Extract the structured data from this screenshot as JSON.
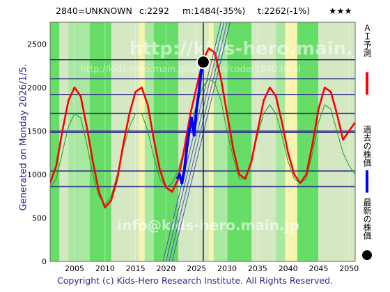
{
  "header": {
    "code": "2840=UNKNOWN",
    "current": "c:2292",
    "mid": "m:1484(-35%)",
    "target": "t:2262(-1%)",
    "stars": "★★★"
  },
  "side_text": "Generated on Monday 2026/1/5.",
  "footer": "Copyright (c) Kids-Hero Research Institute. All Rights Reserved.",
  "watermarks": {
    "top": "http://kids-hero.main.jp/",
    "mid": "http://kids-hero.main.jp/analysis/code/2840.html",
    "bottom": "info@kids-hero.main.jp"
  },
  "legend": [
    {
      "label": "ＡＩ予測",
      "color": "#ff0000",
      "marker": "line"
    },
    {
      "label": "過去の株価",
      "color": "#0000ff",
      "marker": "line"
    },
    {
      "label": "最新の株価",
      "color": "#000000",
      "marker": "dot"
    }
  ],
  "colors": {
    "plot_bg": "#d3e8c3",
    "band_green": "#66dd66",
    "band_light": "#a8e8a0",
    "band_yellow": "#f8f4b0",
    "ai_line": "#ff0000",
    "past_line": "#0000ff",
    "thin_green": "#229922",
    "hline": "#333388"
  },
  "chart_data": {
    "type": "line",
    "xlim": [
      2001,
      2051
    ],
    "ylim": [
      0,
      2750
    ],
    "x_ticks": [
      2005,
      2010,
      2015,
      2020,
      2025,
      2030,
      2035,
      2040,
      2045,
      2050
    ],
    "y_ticks": [
      0,
      500,
      1000,
      1500,
      2000,
      2500
    ],
    "horizontal_levels": [
      860,
      1040,
      1485,
      1500,
      1700,
      1920,
      2100,
      2320
    ],
    "current_marker": {
      "x": 2026.1,
      "y": 2292
    },
    "ai_forecast": [
      [
        2001,
        900
      ],
      [
        2002,
        1100
      ],
      [
        2003,
        1500
      ],
      [
        2004,
        1850
      ],
      [
        2005,
        2000
      ],
      [
        2006,
        1900
      ],
      [
        2007,
        1550
      ],
      [
        2008,
        1150
      ],
      [
        2009,
        800
      ],
      [
        2010,
        620
      ],
      [
        2011,
        700
      ],
      [
        2012,
        950
      ],
      [
        2013,
        1350
      ],
      [
        2014,
        1700
      ],
      [
        2015,
        1950
      ],
      [
        2016,
        2000
      ],
      [
        2017,
        1800
      ],
      [
        2018,
        1400
      ],
      [
        2019,
        1050
      ],
      [
        2020,
        850
      ],
      [
        2021,
        800
      ],
      [
        2022,
        950
      ],
      [
        2023,
        1300
      ],
      [
        2024,
        1700
      ],
      [
        2025,
        2000
      ],
      [
        2026,
        2300
      ],
      [
        2027,
        2450
      ],
      [
        2028,
        2400
      ],
      [
        2029,
        2100
      ],
      [
        2030,
        1700
      ],
      [
        2031,
        1300
      ],
      [
        2032,
        1000
      ],
      [
        2033,
        950
      ],
      [
        2034,
        1150
      ],
      [
        2035,
        1500
      ],
      [
        2036,
        1850
      ],
      [
        2037,
        2000
      ],
      [
        2038,
        1900
      ],
      [
        2039,
        1600
      ],
      [
        2040,
        1250
      ],
      [
        2041,
        1000
      ],
      [
        2042,
        900
      ],
      [
        2043,
        1000
      ],
      [
        2044,
        1350
      ],
      [
        2045,
        1750
      ],
      [
        2046,
        2000
      ],
      [
        2047,
        1950
      ],
      [
        2048,
        1700
      ],
      [
        2049,
        1400
      ],
      [
        2050,
        1500
      ],
      [
        2051,
        1600
      ]
    ],
    "past_prices": [
      [
        2021.8,
        950
      ],
      [
        2022.2,
        1000
      ],
      [
        2022.6,
        900
      ],
      [
        2023.0,
        1050
      ],
      [
        2023.4,
        1300
      ],
      [
        2023.8,
        1500
      ],
      [
        2024.2,
        1650
      ],
      [
        2024.6,
        1450
      ],
      [
        2025.0,
        1750
      ],
      [
        2025.4,
        1950
      ],
      [
        2025.8,
        2200
      ],
      [
        2026.1,
        2292
      ]
    ],
    "thin_green": [
      [
        2001,
        850
      ],
      [
        2002,
        950
      ],
      [
        2003,
        1250
      ],
      [
        2004,
        1550
      ],
      [
        2005,
        1700
      ],
      [
        2006,
        1650
      ],
      [
        2007,
        1350
      ],
      [
        2008,
        1000
      ],
      [
        2009,
        750
      ],
      [
        2010,
        650
      ],
      [
        2011,
        750
      ],
      [
        2012,
        1000
      ],
      [
        2013,
        1300
      ],
      [
        2014,
        1550
      ],
      [
        2015,
        1700
      ],
      [
        2016,
        1700
      ],
      [
        2017,
        1500
      ],
      [
        2018,
        1200
      ],
      [
        2019,
        950
      ],
      [
        2020,
        850
      ],
      [
        2021,
        900
      ],
      [
        2022,
        1050
      ],
      [
        2023,
        1300
      ],
      [
        2024,
        1550
      ],
      [
        2025,
        1800
      ],
      [
        2026,
        2000
      ],
      [
        2027,
        2100
      ],
      [
        2028,
        2050
      ],
      [
        2029,
        1850
      ],
      [
        2030,
        1500
      ],
      [
        2031,
        1200
      ],
      [
        2032,
        950
      ],
      [
        2033,
        950
      ],
      [
        2034,
        1150
      ],
      [
        2035,
        1450
      ],
      [
        2036,
        1700
      ],
      [
        2037,
        1800
      ],
      [
        2038,
        1700
      ],
      [
        2039,
        1450
      ],
      [
        2040,
        1150
      ],
      [
        2041,
        950
      ],
      [
        2042,
        900
      ],
      [
        2043,
        950
      ],
      [
        2044,
        1250
      ],
      [
        2045,
        1600
      ],
      [
        2046,
        1800
      ],
      [
        2047,
        1750
      ],
      [
        2048,
        1500
      ],
      [
        2049,
        1250
      ],
      [
        2050,
        1100
      ],
      [
        2051,
        1000
      ]
    ],
    "trend_lines": [
      [
        [
          2019.5,
          0
        ],
        [
          2029.0,
          2750
        ]
      ],
      [
        [
          2020.0,
          0
        ],
        [
          2029.5,
          2750
        ]
      ],
      [
        [
          2020.5,
          0
        ],
        [
          2030.0,
          2750
        ]
      ],
      [
        [
          2021.0,
          0
        ],
        [
          2030.5,
          2750
        ]
      ]
    ],
    "green_bands": [
      [
        2001,
        2002.5
      ],
      [
        2007.5,
        2011
      ],
      [
        2018,
        2022
      ],
      [
        2030,
        2034
      ],
      [
        2041,
        2045
      ]
    ],
    "light_bands": [
      [
        2004,
        2007.5
      ],
      [
        2016,
        2018
      ],
      [
        2027.5,
        2030
      ],
      [
        2038,
        2041
      ]
    ],
    "yellow_bands": [
      [
        2015.5,
        2016.5
      ],
      [
        2027,
        2027.8
      ],
      [
        2039.5,
        2041.5
      ]
    ]
  }
}
